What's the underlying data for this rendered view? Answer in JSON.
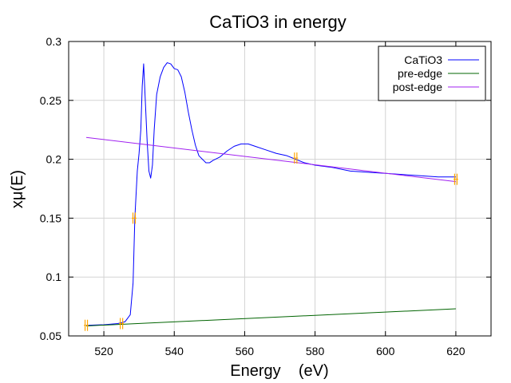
{
  "chart_data": {
    "type": "line",
    "title": "CaTiO3 in energy",
    "xlabel": "Energy    (eV)",
    "ylabel": "xμ(E)",
    "xlim": [
      510,
      630
    ],
    "ylim": [
      0.05,
      0.3
    ],
    "xticks": [
      520,
      540,
      560,
      580,
      600,
      620
    ],
    "yticks": [
      0.05,
      0.1,
      0.15,
      0.2,
      0.25,
      0.3
    ],
    "xtick_labels": [
      "520",
      "540",
      "560",
      "580",
      "600",
      "620"
    ],
    "ytick_labels": [
      "0.05",
      "0.1",
      "0.15",
      "0.2",
      "0.25",
      "0.3"
    ],
    "grid": true,
    "legend_position": "top-right",
    "series": [
      {
        "name": "CaTiO3",
        "color": "#0000ff",
        "x": [
          515,
          520,
          524,
          526,
          527.5,
          528.3,
          528.8,
          529.5,
          530.0,
          530.5,
          530.9,
          531.3,
          531.8,
          532.3,
          532.8,
          533.3,
          533.8,
          534.3,
          535.0,
          536.0,
          537.0,
          538.0,
          539.0,
          540.0,
          541.0,
          542.0,
          543.0,
          544.0,
          545.0,
          546.0,
          547.0,
          548.0,
          549.0,
          550.0,
          551.0,
          553.0,
          555.0,
          557.0,
          559.0,
          561.0,
          563.0,
          566.0,
          569.0,
          572.0,
          574.5,
          577.0,
          580.0,
          585.0,
          590.0,
          595.0,
          600.0,
          605.0,
          610.0,
          615.0,
          620.0
        ],
        "y": [
          0.059,
          0.0595,
          0.0605,
          0.062,
          0.068,
          0.095,
          0.15,
          0.19,
          0.205,
          0.225,
          0.262,
          0.281,
          0.248,
          0.215,
          0.19,
          0.184,
          0.195,
          0.225,
          0.255,
          0.27,
          0.278,
          0.282,
          0.281,
          0.277,
          0.276,
          0.27,
          0.257,
          0.24,
          0.225,
          0.212,
          0.203,
          0.2,
          0.197,
          0.197,
          0.199,
          0.202,
          0.207,
          0.211,
          0.213,
          0.213,
          0.211,
          0.208,
          0.205,
          0.203,
          0.2,
          0.197,
          0.195,
          0.193,
          0.19,
          0.189,
          0.188,
          0.187,
          0.186,
          0.185,
          0.185
        ]
      },
      {
        "name": "pre-edge",
        "color": "#006400",
        "x": [
          515,
          620
        ],
        "y": [
          0.0585,
          0.073
        ]
      },
      {
        "name": "post-edge",
        "color": "#a020f0",
        "x": [
          515,
          620
        ],
        "y": [
          0.2185,
          0.181
        ]
      }
    ],
    "markers": {
      "color": "#ffa500",
      "points": [
        {
          "x": 515,
          "y": 0.059
        },
        {
          "x": 525,
          "y": 0.0605
        },
        {
          "x": 528.6,
          "y": 0.15
        },
        {
          "x": 574.5,
          "y": 0.201
        },
        {
          "x": 620,
          "y": 0.183
        }
      ]
    }
  }
}
